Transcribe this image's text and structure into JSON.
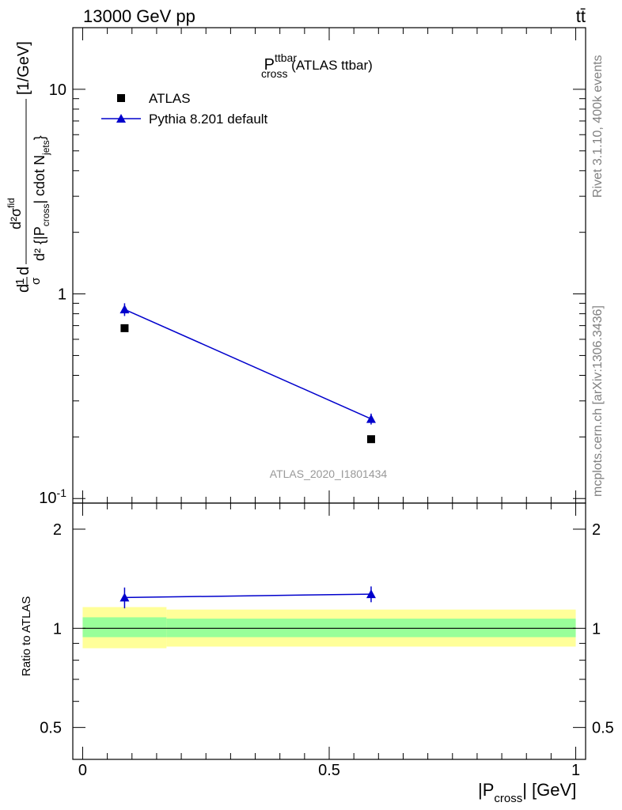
{
  "header": {
    "energy_label": "13000 GeV pp",
    "process_label": "tt̄"
  },
  "side_text": {
    "rivet": "Rivet 3.1.10,  400k events",
    "mcplots": "mcplots.cern.ch [arXiv:1306.3436]"
  },
  "watermark": "ATLAS_2020_I1801434",
  "legend": {
    "atlas_label": "ATLAS",
    "pythia_label": "Pythia 8.201 default"
  },
  "colors": {
    "data": "#000000",
    "mc": "#0000cc",
    "band_outer": "#ffff99",
    "band_inner": "#99ff99",
    "side_text": "#808080"
  },
  "chart_data": [
    {
      "type": "scatter",
      "title": "P^ttbar_cross (ATLAS ttbar)",
      "title_parts": {
        "base": "P",
        "sup": "ttbar",
        "sub": "cross",
        "suffix": " (ATLAS ttbar)"
      },
      "ylabel": "d^2σ^{fid} / d^2{|P_cross| cdot N_jets} [1/GeV] (normalised: 1/σ dσ)",
      "yscale": "log",
      "ylim": [
        0.095,
        20
      ],
      "xlim": [
        -0.02,
        1.02
      ],
      "yticks": [
        {
          "value": 0.1,
          "label": "10^-1"
        },
        {
          "value": 1,
          "label": "1"
        },
        {
          "value": 10,
          "label": "10"
        }
      ],
      "legend_position": "top-left",
      "series": [
        {
          "name": "ATLAS",
          "marker": "square",
          "x": [
            0.085,
            0.585
          ],
          "y": [
            0.68,
            0.195
          ]
        },
        {
          "name": "Pythia 8.201 default",
          "marker": "triangle",
          "line": true,
          "x": [
            0.085,
            0.585
          ],
          "y": [
            0.84,
            0.245
          ],
          "yerr": [
            0.06,
            0.015
          ]
        }
      ],
      "bin_edges": [
        0.0,
        0.17,
        1.0
      ]
    },
    {
      "type": "scatter",
      "ylabel": "Ratio to ATLAS",
      "xlabel": "|P_cross| [GeV]",
      "xlabel_parts": {
        "pre": "|P",
        "sub": "cross",
        "post": "| [GeV]"
      },
      "xlim": [
        -0.02,
        1.02
      ],
      "ylim": [
        0.4,
        2.4
      ],
      "yscale": "log",
      "xticks": [
        {
          "value": 0,
          "label": "0"
        },
        {
          "value": 0.5,
          "label": "0.5"
        },
        {
          "value": 1,
          "label": "1"
        }
      ],
      "yticks": [
        {
          "value": 0.5,
          "label": "0.5"
        },
        {
          "value": 1,
          "label": "1"
        },
        {
          "value": 2,
          "label": "2"
        }
      ],
      "bands": [
        {
          "x": [
            0.0,
            0.17
          ],
          "outer": [
            0.87,
            1.16
          ],
          "inner": [
            0.94,
            1.08
          ]
        },
        {
          "x": [
            0.17,
            1.0
          ],
          "outer": [
            0.88,
            1.14
          ],
          "inner": [
            0.94,
            1.07
          ]
        }
      ],
      "series": [
        {
          "name": "Pythia 8.201 default",
          "x": [
            0.085,
            0.585
          ],
          "y": [
            1.24,
            1.27
          ],
          "yerr": [
            0.09,
            0.07
          ]
        }
      ]
    }
  ]
}
